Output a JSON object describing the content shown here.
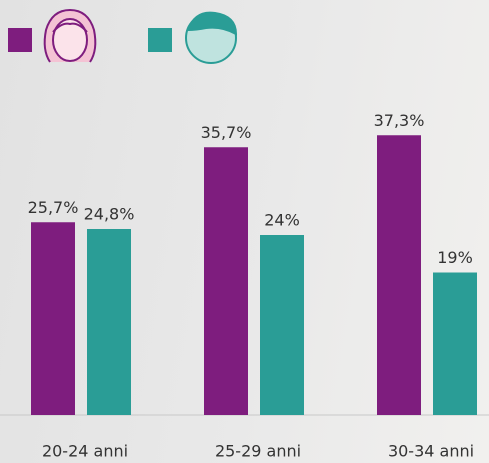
{
  "chart_data": {
    "type": "bar",
    "categories": [
      "20-24 anni",
      "25-29 anni",
      "30-34 anni"
    ],
    "series": [
      {
        "color": "#7e1d7e",
        "values": [
          25.7,
          35.7,
          37.3
        ],
        "value_labels": [
          "25,7%",
          "35,7%",
          "37,3%"
        ]
      },
      {
        "color": "#2a9d96",
        "values": [
          24.8,
          24,
          19
        ],
        "value_labels": [
          "24,8%",
          "24%",
          "19%"
        ]
      }
    ],
    "ylim": [
      0,
      40
    ]
  }
}
